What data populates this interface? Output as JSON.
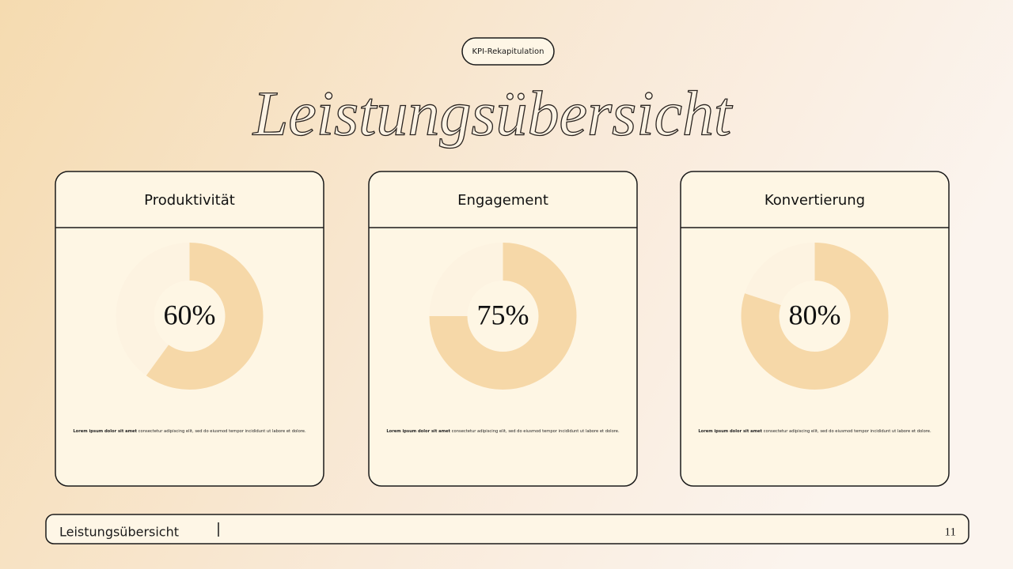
{
  "badge": "KPI-Rekapitulation",
  "title": "Leistungsübersicht",
  "chart_data": [
    {
      "type": "donut",
      "title": "Produktivität",
      "values": [
        60
      ],
      "value_labels": [
        "60%"
      ],
      "max": 100,
      "color": "#f6d8a8",
      "track_color": "#fdf3e1",
      "caption_bold": "Lorem ipsum dolor sit amet",
      "caption": "consectetur adipiscing elit, sed do eiusmod tempor incididunt ut labore et dolore."
    },
    {
      "type": "donut",
      "title": "Engagement",
      "values": [
        75
      ],
      "value_labels": [
        "75%"
      ],
      "max": 100,
      "color": "#f6d8a8",
      "track_color": "#fdf3e1",
      "caption_bold": "Lorem ipsum dolor sit amet",
      "caption": "consectetur adipiscing elit, sed do eiusmod tempor incididunt ut labore et dolore."
    },
    {
      "type": "donut",
      "title": "Konvertierung",
      "values": [
        80
      ],
      "value_labels": [
        "80%"
      ],
      "max": 100,
      "color": "#f6d8a8",
      "track_color": "#fdf3e1",
      "caption_bold": "Lorem ipsum dolor sit amet",
      "caption": "consectetur adipiscing elit, sed do eiusmod tempor incididunt ut labore et dolore."
    }
  ],
  "footer": {
    "text": "Leistungsübersicht",
    "page": "11"
  }
}
